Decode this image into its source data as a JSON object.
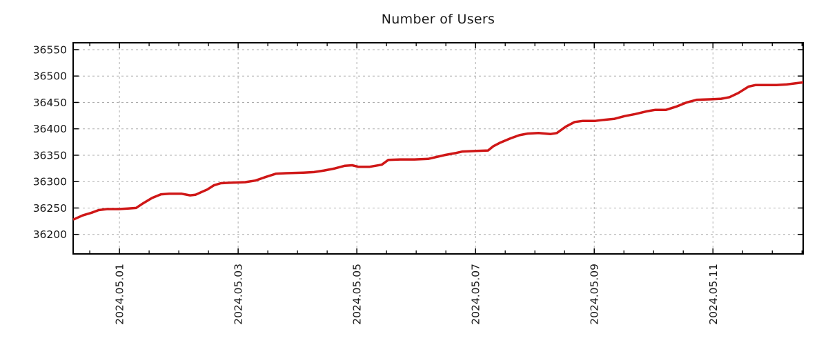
{
  "chart_data": {
    "type": "line",
    "title": "Number of Users",
    "xlabel": "",
    "ylabel": "",
    "legend": "none",
    "grid": true,
    "x_unit": "date (May 2024, day number)",
    "xlim_days": [
      0.22,
      12.52
    ],
    "ylim": [
      36163,
      36563
    ],
    "y_ticks": [
      36200,
      36250,
      36300,
      36350,
      36400,
      36450,
      36500,
      36550
    ],
    "x_major_ticks": [
      {
        "day": 1,
        "label": "2024.05.01"
      },
      {
        "day": 3,
        "label": "2024.05.03"
      },
      {
        "day": 5,
        "label": "2024.05.05"
      },
      {
        "day": 7,
        "label": "2024.05.07"
      },
      {
        "day": 9,
        "label": "2024.05.09"
      },
      {
        "day": 11,
        "label": "2024.05.11"
      }
    ],
    "x_minor_tick_step_days": 0.5,
    "colors": {
      "line": "#cf1717",
      "grid": "#ababab",
      "axis": "#000000",
      "text": "#1a1a1a",
      "background": "#ffffff"
    },
    "series": [
      {
        "name": "users",
        "points": [
          [
            0.22,
            36228
          ],
          [
            0.38,
            36236
          ],
          [
            0.53,
            36241
          ],
          [
            0.65,
            36246
          ],
          [
            0.79,
            36248
          ],
          [
            0.99,
            36248
          ],
          [
            1.14,
            36249
          ],
          [
            1.28,
            36250
          ],
          [
            1.4,
            36259
          ],
          [
            1.55,
            36269
          ],
          [
            1.7,
            36276
          ],
          [
            1.84,
            36277
          ],
          [
            2.05,
            36277
          ],
          [
            2.19,
            36274
          ],
          [
            2.28,
            36275
          ],
          [
            2.4,
            36281
          ],
          [
            2.48,
            36285
          ],
          [
            2.59,
            36293
          ],
          [
            2.71,
            36297
          ],
          [
            2.88,
            36298
          ],
          [
            3.12,
            36299
          ],
          [
            3.29,
            36302
          ],
          [
            3.47,
            36309
          ],
          [
            3.64,
            36315
          ],
          [
            3.81,
            36316
          ],
          [
            4.1,
            36317
          ],
          [
            4.28,
            36318
          ],
          [
            4.45,
            36321
          ],
          [
            4.63,
            36325
          ],
          [
            4.8,
            36330
          ],
          [
            4.92,
            36331
          ],
          [
            5.03,
            36328
          ],
          [
            5.21,
            36328
          ],
          [
            5.42,
            36332
          ],
          [
            5.53,
            36341
          ],
          [
            5.73,
            36342
          ],
          [
            5.97,
            36342
          ],
          [
            6.2,
            36343
          ],
          [
            6.47,
            36350
          ],
          [
            6.66,
            36354
          ],
          [
            6.78,
            36357
          ],
          [
            7.01,
            36358
          ],
          [
            7.21,
            36359
          ],
          [
            7.3,
            36367
          ],
          [
            7.42,
            36374
          ],
          [
            7.59,
            36382
          ],
          [
            7.74,
            36388
          ],
          [
            7.88,
            36391
          ],
          [
            8.06,
            36392
          ],
          [
            8.26,
            36390
          ],
          [
            8.37,
            36392
          ],
          [
            8.52,
            36404
          ],
          [
            8.67,
            36413
          ],
          [
            8.81,
            36415
          ],
          [
            9.02,
            36415
          ],
          [
            9.16,
            36417
          ],
          [
            9.34,
            36419
          ],
          [
            9.51,
            36424
          ],
          [
            9.69,
            36428
          ],
          [
            9.88,
            36433
          ],
          [
            10.03,
            36436
          ],
          [
            10.21,
            36436
          ],
          [
            10.38,
            36442
          ],
          [
            10.56,
            36450
          ],
          [
            10.73,
            36455
          ],
          [
            10.97,
            36456
          ],
          [
            11.14,
            36457
          ],
          [
            11.28,
            36460
          ],
          [
            11.43,
            36468
          ],
          [
            11.6,
            36480
          ],
          [
            11.72,
            36483
          ],
          [
            11.9,
            36483
          ],
          [
            12.07,
            36483
          ],
          [
            12.24,
            36484
          ],
          [
            12.38,
            36486
          ],
          [
            12.52,
            36488
          ]
        ]
      }
    ]
  }
}
